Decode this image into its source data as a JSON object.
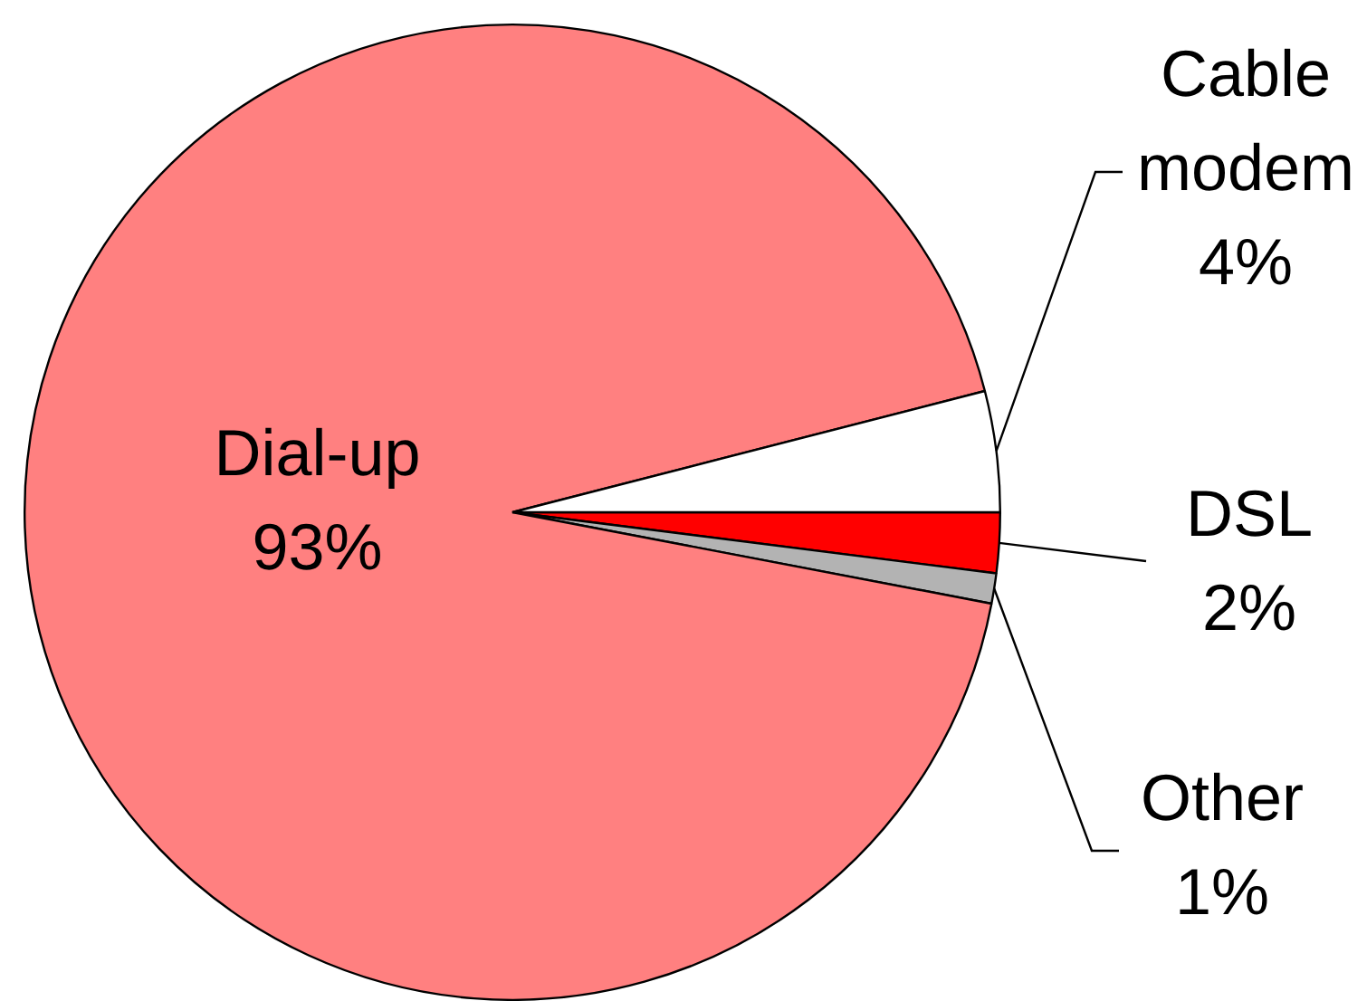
{
  "chart_data": {
    "type": "pie",
    "categories": [
      "DSL",
      "Other",
      "Dial-up",
      "Cable modem"
    ],
    "values": [
      2,
      1,
      93,
      4
    ],
    "colors": [
      "#ff0000",
      "#b3b3b3",
      "#ff8080",
      "#ffffff"
    ],
    "value_labels": [
      "2%",
      "1%",
      "93%",
      "4%"
    ]
  }
}
